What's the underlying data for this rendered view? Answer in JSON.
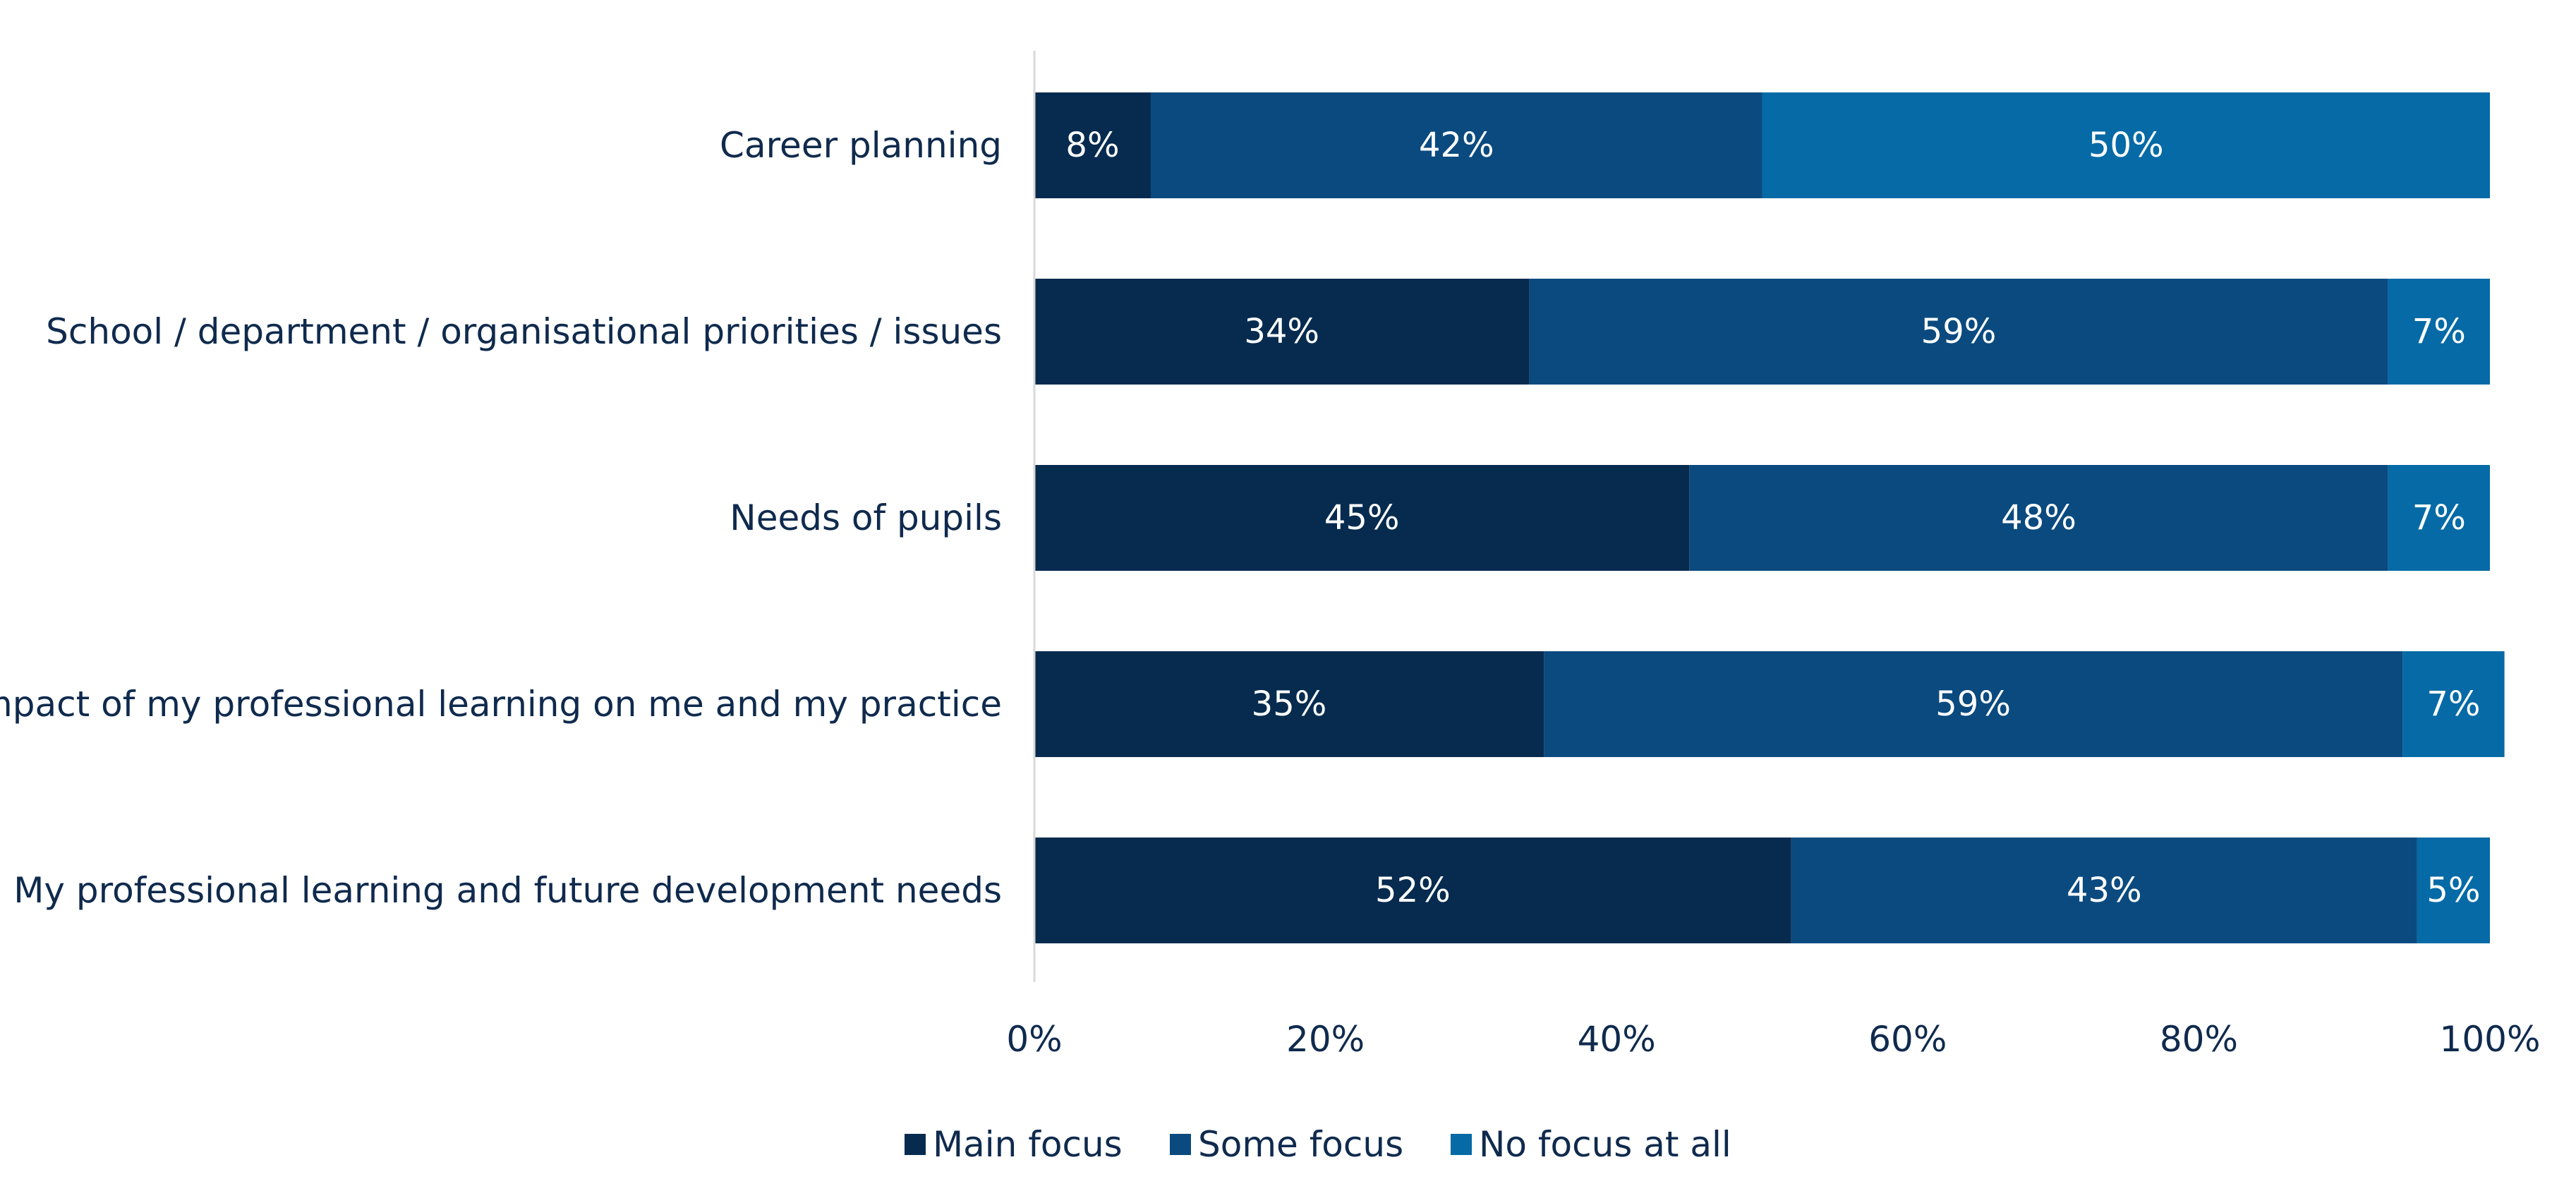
{
  "chart_data": {
    "type": "bar",
    "orientation": "horizontal",
    "stacked": true,
    "categories": [
      "Career planning",
      "School / department / organisational priorities / issues",
      "Needs of pupils",
      "Impact of my professional learning on me and my practice",
      "My professional learning and future development needs"
    ],
    "series": [
      {
        "name": "Main focus",
        "color": "#062b4f",
        "values": [
          8,
          34,
          45,
          35,
          52
        ],
        "labels": [
          "8%",
          "34%",
          "45%",
          "35%",
          "52%"
        ]
      },
      {
        "name": "Some focus",
        "color": "#0a4a7f",
        "values": [
          42,
          59,
          48,
          59,
          43
        ],
        "labels": [
          "42%",
          "59%",
          "48%",
          "59%",
          "43%"
        ]
      },
      {
        "name": "No focus at all",
        "color": "#056aa6",
        "values": [
          50,
          7,
          7,
          7,
          5
        ],
        "labels": [
          "50%",
          "7%",
          "7%",
          "7%",
          "5%"
        ]
      }
    ],
    "xlim": [
      0,
      100
    ],
    "xticks": [
      "0%",
      "20%",
      "40%",
      "60%",
      "80%",
      "100%"
    ],
    "grid": false,
    "legend_position": "bottom"
  }
}
